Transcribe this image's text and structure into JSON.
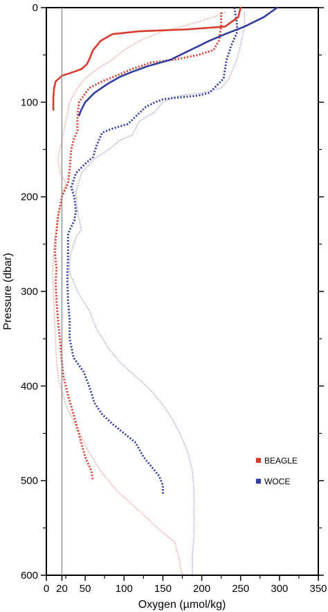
{
  "chart_data": {
    "type": "line",
    "xlabel": "Oxygen (µmol/kg)",
    "ylabel": "Pressure (dbar)",
    "xlim": [
      0,
      350
    ],
    "ylim": [
      600,
      0
    ],
    "y_inverted": true,
    "x_ticks": [
      0,
      20,
      50,
      100,
      150,
      200,
      250,
      300,
      350
    ],
    "y_ticks": [
      0,
      100,
      200,
      300,
      400,
      500,
      600
    ],
    "x_tick_labels": [
      "0",
      "20",
      "50",
      "100",
      "150",
      "200",
      "250",
      "300",
      "350"
    ],
    "y_tick_labels": [
      "0",
      "100",
      "200",
      "300",
      "400",
      "500",
      "600"
    ],
    "reference_line_x": 20,
    "legend": {
      "position": "lower-right",
      "entries": [
        {
          "label": "BEAGLE",
          "color": "#d93a2e"
        },
        {
          "label": "WOCE",
          "color": "#323c9c"
        }
      ]
    },
    "series": [
      {
        "name": "BEAGLE",
        "style": "solid",
        "color": "#d93a2e",
        "points": [
          [
            250,
            0
          ],
          [
            247,
            10
          ],
          [
            230,
            20
          ],
          [
            180,
            23
          ],
          [
            120,
            25
          ],
          [
            85,
            28
          ],
          [
            70,
            35
          ],
          [
            60,
            45
          ],
          [
            55,
            55
          ],
          [
            52,
            60
          ],
          [
            45,
            65
          ],
          [
            35,
            68
          ],
          [
            20,
            72
          ],
          [
            12,
            78
          ],
          [
            10,
            85
          ],
          [
            9,
            95
          ],
          [
            9,
            108
          ]
        ]
      },
      {
        "name": "BEAGLE",
        "style": "dotted",
        "color": "#d93a2e",
        "points": [
          [
            225,
            5
          ],
          [
            225,
            20
          ],
          [
            222,
            35
          ],
          [
            215,
            45
          ],
          [
            195,
            50
          ],
          [
            165,
            55
          ],
          [
            135,
            58
          ],
          [
            110,
            65
          ],
          [
            90,
            72
          ],
          [
            72,
            78
          ],
          [
            55,
            85
          ],
          [
            42,
            100
          ],
          [
            40,
            115
          ],
          [
            40,
            130
          ],
          [
            35,
            140
          ],
          [
            32,
            150
          ],
          [
            30,
            170
          ],
          [
            28,
            185
          ],
          [
            20,
            200
          ],
          [
            15,
            220
          ],
          [
            12,
            245
          ],
          [
            11,
            260
          ],
          [
            13,
            275
          ],
          [
            12,
            290
          ],
          [
            13,
            310
          ],
          [
            15,
            330
          ],
          [
            18,
            355
          ],
          [
            20,
            375
          ],
          [
            22,
            390
          ],
          [
            28,
            410
          ],
          [
            35,
            430
          ],
          [
            40,
            445
          ],
          [
            45,
            460
          ],
          [
            50,
            475
          ],
          [
            58,
            490
          ],
          [
            60,
            500
          ]
        ]
      },
      {
        "name": "BEAGLE",
        "style": "dotted-light",
        "color": "#e8a39d",
        "points": [
          [
            230,
            5
          ],
          [
            215,
            10
          ],
          [
            195,
            15
          ],
          [
            175,
            20
          ],
          [
            150,
            25
          ],
          [
            120,
            35
          ],
          [
            100,
            45
          ],
          [
            85,
            55
          ],
          [
            65,
            65
          ],
          [
            50,
            75
          ],
          [
            40,
            85
          ],
          [
            30,
            100
          ],
          [
            25,
            120
          ],
          [
            20,
            140
          ],
          [
            15,
            160
          ],
          [
            18,
            175
          ],
          [
            25,
            185
          ],
          [
            20,
            200
          ],
          [
            15,
            225
          ],
          [
            10,
            250
          ],
          [
            8,
            280
          ],
          [
            10,
            320
          ],
          [
            12,
            360
          ],
          [
            15,
            390
          ],
          [
            25,
            420
          ],
          [
            40,
            445
          ],
          [
            55,
            470
          ],
          [
            70,
            490
          ],
          [
            90,
            510
          ],
          [
            110,
            525
          ],
          [
            130,
            540
          ],
          [
            150,
            555
          ],
          [
            165,
            565
          ],
          [
            170,
            580
          ],
          [
            175,
            600
          ]
        ]
      },
      {
        "name": "WOCE",
        "style": "solid",
        "color": "#323c9c",
        "points": [
          [
            297,
            0
          ],
          [
            280,
            10
          ],
          [
            255,
            20
          ],
          [
            230,
            28
          ],
          [
            210,
            35
          ],
          [
            185,
            45
          ],
          [
            160,
            55
          ],
          [
            130,
            62
          ],
          [
            110,
            68
          ],
          [
            95,
            73
          ],
          [
            80,
            80
          ],
          [
            62,
            90
          ],
          [
            50,
            100
          ],
          [
            45,
            108
          ],
          [
            42,
            114
          ]
        ]
      },
      {
        "name": "WOCE",
        "style": "dotted",
        "color": "#323c9c",
        "points": [
          [
            242,
            0
          ],
          [
            245,
            15
          ],
          [
            246,
            25
          ],
          [
            238,
            40
          ],
          [
            232,
            55
          ],
          [
            228,
            75
          ],
          [
            222,
            80
          ],
          [
            210,
            90
          ],
          [
            195,
            93
          ],
          [
            170,
            95
          ],
          [
            150,
            97
          ],
          [
            140,
            100
          ],
          [
            128,
            105
          ],
          [
            115,
            115
          ],
          [
            105,
            123
          ],
          [
            85,
            128
          ],
          [
            72,
            132
          ],
          [
            65,
            145
          ],
          [
            60,
            158
          ],
          [
            50,
            165
          ],
          [
            38,
            175
          ],
          [
            32,
            190
          ],
          [
            36,
            200
          ],
          [
            38,
            215
          ],
          [
            36,
            225
          ],
          [
            30,
            235
          ],
          [
            28,
            240
          ],
          [
            28,
            260
          ],
          [
            27,
            290
          ],
          [
            28,
            310
          ],
          [
            30,
            330
          ],
          [
            30,
            350
          ],
          [
            35,
            370
          ],
          [
            48,
            385
          ],
          [
            55,
            400
          ],
          [
            62,
            418
          ],
          [
            72,
            430
          ],
          [
            85,
            440
          ],
          [
            100,
            450
          ],
          [
            115,
            460
          ],
          [
            125,
            475
          ],
          [
            135,
            485
          ],
          [
            145,
            495
          ],
          [
            150,
            505
          ],
          [
            150,
            515
          ]
        ]
      },
      {
        "name": "WOCE",
        "style": "dotted-light",
        "color": "#a3a8d2",
        "points": [
          [
            255,
            5
          ],
          [
            255,
            20
          ],
          [
            250,
            40
          ],
          [
            245,
            55
          ],
          [
            235,
            75
          ],
          [
            225,
            85
          ],
          [
            200,
            90
          ],
          [
            180,
            92
          ],
          [
            162,
            95
          ],
          [
            150,
            100
          ],
          [
            140,
            110
          ],
          [
            120,
            120
          ],
          [
            110,
            135
          ],
          [
            95,
            140
          ],
          [
            80,
            150
          ],
          [
            62,
            160
          ],
          [
            45,
            175
          ],
          [
            38,
            195
          ],
          [
            40,
            215
          ],
          [
            45,
            235
          ],
          [
            40,
            240
          ],
          [
            35,
            250
          ],
          [
            30,
            265
          ],
          [
            30,
            280
          ],
          [
            40,
            300
          ],
          [
            55,
            320
          ],
          [
            65,
            340
          ],
          [
            80,
            360
          ],
          [
            95,
            375
          ],
          [
            115,
            390
          ],
          [
            135,
            405
          ],
          [
            150,
            420
          ],
          [
            162,
            435
          ],
          [
            172,
            450
          ],
          [
            182,
            470
          ],
          [
            188,
            490
          ],
          [
            190,
            510
          ],
          [
            190,
            535
          ],
          [
            190,
            560
          ],
          [
            188,
            580
          ],
          [
            188,
            600
          ]
        ]
      }
    ]
  }
}
